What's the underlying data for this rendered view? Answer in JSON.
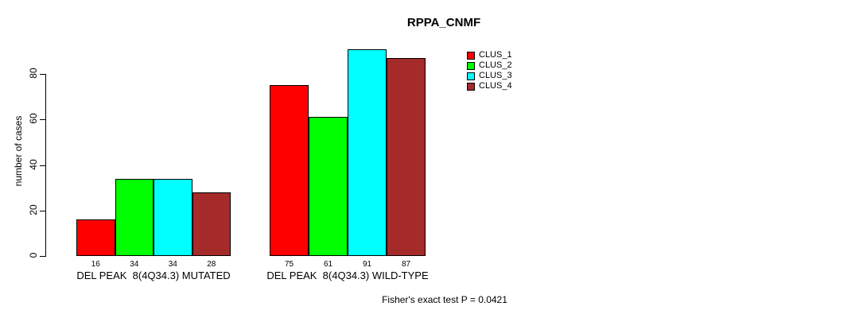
{
  "chart_data": {
    "type": "bar",
    "title": "RPPA_CNMF",
    "ylabel": "number of cases",
    "xlabel": "",
    "ylim": [
      0,
      80
    ],
    "yticks": [
      0,
      20,
      40,
      60,
      80
    ],
    "grid": false,
    "legend_position": "top-right",
    "categories": [
      "DEL PEAK  8(4Q34.3) MUTATED",
      "DEL PEAK  8(4Q34.3) WILD-TYPE"
    ],
    "series": [
      {
        "name": "CLUS_1",
        "color": "#ff0000",
        "values": [
          16,
          75
        ]
      },
      {
        "name": "CLUS_2",
        "color": "#00ff00",
        "values": [
          34,
          61
        ]
      },
      {
        "name": "CLUS_3",
        "color": "#00ffff",
        "values": [
          34,
          91
        ]
      },
      {
        "name": "CLUS_4",
        "color": "#a52a2a",
        "values": [
          28,
          87
        ]
      }
    ],
    "bar_value_labels": {
      "MUTATED": [
        16,
        34,
        34,
        28
      ],
      "WILD-TYPE": [
        75,
        61,
        91,
        87
      ]
    },
    "annotation": "Fisher's exact test P = 0.0421"
  },
  "colors": {
    "axis": "#000000",
    "background": "#ffffff"
  }
}
